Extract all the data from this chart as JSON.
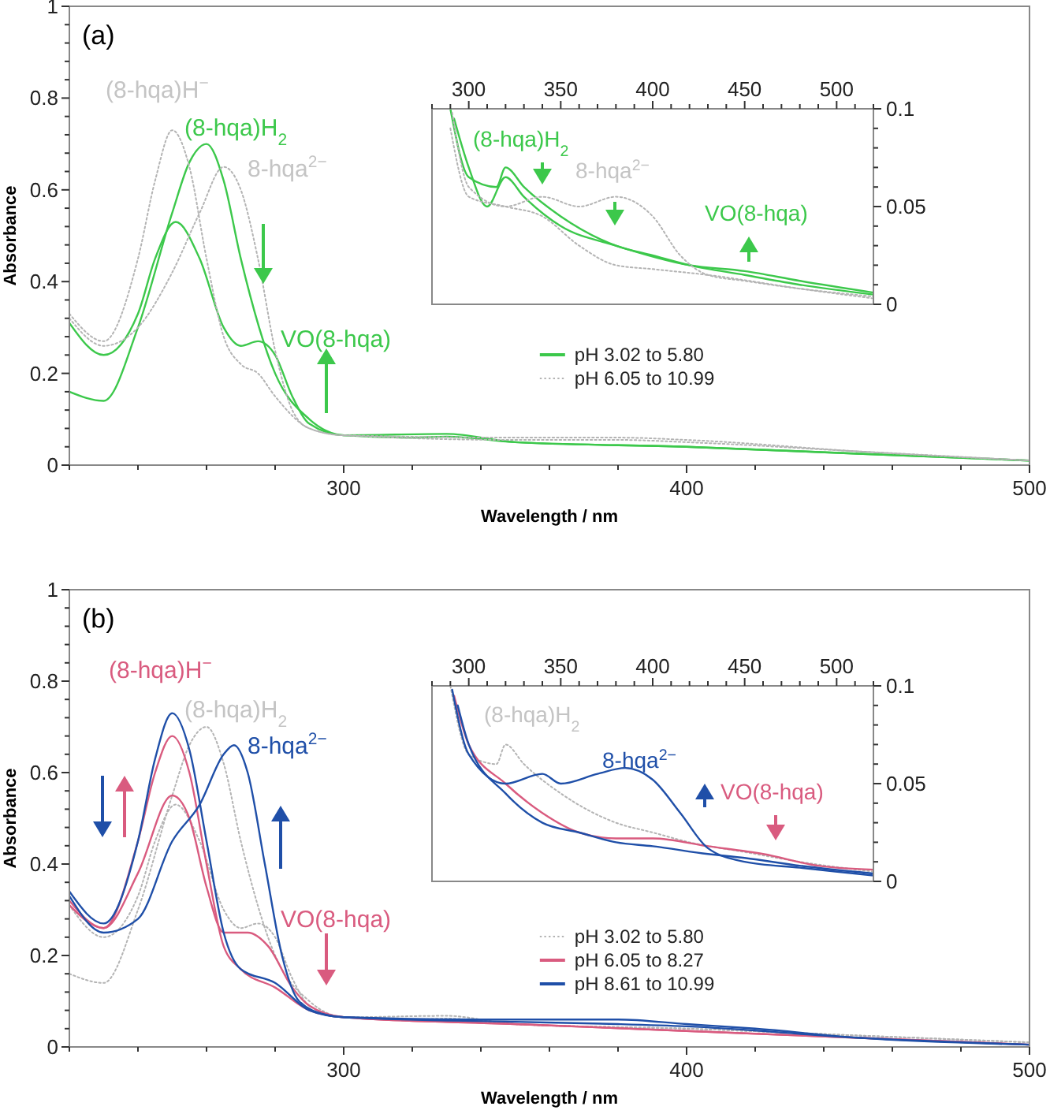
{
  "chart_data": [
    {
      "type": "line",
      "xlabel": "Wavelength / nm",
      "ylabel": "Absorbance",
      "xlim": [
        220,
        500
      ],
      "ylim": [
        0,
        1
      ],
      "xticks": [
        {
          "value": 220,
          "label": null
        },
        {
          "value": 240,
          "label": null
        },
        {
          "value": 260,
          "label": null
        },
        {
          "value": 280,
          "label": null
        },
        300,
        {
          "value": 320,
          "label": null
        },
        {
          "value": 340,
          "label": null
        },
        {
          "value": 360,
          "label": null
        },
        {
          "value": 380,
          "label": null
        },
        400,
        {
          "value": 420,
          "label": null
        },
        {
          "value": 440,
          "label": null
        },
        {
          "value": 460,
          "label": null
        },
        {
          "value": 480,
          "label": null
        },
        500
      ],
      "yticks": [
        0,
        {
          "value": 0.04,
          "label": null
        },
        {
          "value": 0.08,
          "label": null
        },
        {
          "value": 0.12,
          "label": null
        },
        {
          "value": 0.16,
          "label": null
        },
        0.2,
        {
          "value": 0.24,
          "label": null
        },
        {
          "value": 0.28,
          "label": null
        },
        {
          "value": 0.32,
          "label": null
        },
        {
          "value": 0.36,
          "label": null
        },
        0.4,
        {
          "value": 0.44,
          "label": null
        },
        {
          "value": 0.48,
          "label": null
        },
        {
          "value": 0.52,
          "label": null
        },
        {
          "value": 0.56,
          "label": null
        },
        0.6,
        {
          "value": 0.64,
          "label": null
        },
        {
          "value": 0.68,
          "label": null
        },
        {
          "value": 0.72,
          "label": null
        },
        {
          "value": 0.76,
          "label": null
        },
        0.8,
        {
          "value": 0.84,
          "label": null
        },
        {
          "value": 0.88,
          "label": null
        },
        {
          "value": 0.92,
          "label": null
        },
        {
          "value": 0.96,
          "label": null
        },
        1
      ],
      "legend": "bottom",
      "marker": "none",
      "series": [
        {
          "name": "pH 3.02 to 5.80",
          "color": "#3cc84b",
          "line_style": "solid",
          "x": [
            220,
            230,
            240,
            250,
            255,
            260,
            265,
            270,
            280,
            290,
            300,
            320,
            330,
            350,
            400,
            450,
            500
          ],
          "values": [
            0.16,
            0.14,
            0.3,
            0.55,
            0.66,
            0.7,
            0.62,
            0.45,
            0.2,
            0.1,
            0.065,
            0.06,
            0.062,
            0.05,
            0.04,
            0.025,
            0.01
          ]
        },
        {
          "color": "#3cc84b",
          "line_style": "solid",
          "x": [
            220,
            230,
            240,
            245,
            251,
            258,
            265,
            270,
            275,
            280,
            285,
            290,
            300,
            330,
            350,
            400,
            450,
            500
          ],
          "values": [
            0.31,
            0.24,
            0.33,
            0.45,
            0.53,
            0.45,
            0.3,
            0.26,
            0.27,
            0.24,
            0.15,
            0.09,
            0.065,
            0.068,
            0.05,
            0.04,
            0.025,
            0.01
          ]
        },
        {
          "name": "pH 6.05 to 10.99",
          "color": "#b4b4b4",
          "line_style": "dotted",
          "x": [
            220,
            230,
            240,
            245,
            250,
            255,
            260,
            265,
            270,
            275,
            280,
            290,
            300,
            350,
            380,
            400,
            450,
            500
          ],
          "values": [
            0.33,
            0.27,
            0.45,
            0.62,
            0.73,
            0.65,
            0.45,
            0.28,
            0.22,
            0.2,
            0.15,
            0.08,
            0.065,
            0.055,
            0.055,
            0.05,
            0.03,
            0.01
          ]
        },
        {
          "color": "#b4b4b4",
          "line_style": "dotted",
          "x": [
            220,
            230,
            240,
            250,
            258,
            265,
            270,
            275,
            280,
            285,
            290,
            300,
            350,
            380,
            400,
            450,
            500
          ],
          "values": [
            0.32,
            0.26,
            0.3,
            0.42,
            0.55,
            0.65,
            0.6,
            0.45,
            0.25,
            0.12,
            0.08,
            0.065,
            0.06,
            0.06,
            0.055,
            0.03,
            0.01
          ]
        }
      ],
      "annotations": [
        "(a)",
        "(8-hqa)H$^{−}$",
        "(8-hqa)H$_{2}$",
        "8-hqa$^{2−}$",
        "VO(8-hqa)"
      ]
    },
    {
      "type": "line",
      "xlim": [
        280,
        520
      ],
      "ylim": [
        0,
        0.1
      ],
      "xticks": [
        {
          "value": 280,
          "label": null
        },
        {
          "value": 290,
          "label": null
        },
        300,
        {
          "value": 310,
          "label": null
        },
        {
          "value": 320,
          "label": null
        },
        {
          "value": 330,
          "label": null
        },
        {
          "value": 340,
          "label": null
        },
        350,
        {
          "value": 360,
          "label": null
        },
        {
          "value": 370,
          "label": null
        },
        {
          "value": 380,
          "label": null
        },
        {
          "value": 390,
          "label": null
        },
        400,
        {
          "value": 410,
          "label": null
        },
        {
          "value": 420,
          "label": null
        },
        {
          "value": 430,
          "label": null
        },
        {
          "value": 440,
          "label": null
        },
        450,
        {
          "value": 460,
          "label": null
        },
        {
          "value": 470,
          "label": null
        },
        {
          "value": 480,
          "label": null
        },
        {
          "value": 490,
          "label": null
        },
        500,
        {
          "value": 510,
          "label": null
        },
        {
          "value": 520,
          "label": null
        }
      ],
      "yticks": [
        0,
        {
          "value": 0.01,
          "label": null
        },
        {
          "value": 0.02,
          "label": null
        },
        {
          "value": 0.03,
          "label": null
        },
        {
          "value": 0.04,
          "label": null
        },
        0.05,
        {
          "value": 0.06,
          "label": null
        },
        {
          "value": 0.07,
          "label": null
        },
        {
          "value": 0.08,
          "label": null
        },
        {
          "value": 0.09,
          "label": null
        },
        0.1
      ],
      "marker": "none",
      "series": [
        {
          "color": "#3cc84b",
          "line_style": "solid",
          "x": [
            290,
            300,
            315,
            320,
            330,
            350,
            380,
            400,
            420,
            450,
            480,
            520
          ],
          "values": [
            0.1,
            0.065,
            0.06,
            0.07,
            0.06,
            0.045,
            0.03,
            0.025,
            0.02,
            0.015,
            0.01,
            0.005
          ]
        },
        {
          "color": "#3cc84b",
          "line_style": "solid",
          "x": [
            292,
            300,
            310,
            320,
            330,
            350,
            380,
            420,
            450,
            480,
            520
          ],
          "values": [
            0.095,
            0.07,
            0.05,
            0.065,
            0.055,
            0.04,
            0.03,
            0.02,
            0.017,
            0.012,
            0.006
          ]
        },
        {
          "color": "#b4b4b4",
          "line_style": "dotted",
          "x": [
            291,
            300,
            320,
            340,
            360,
            380,
            400,
            415,
            430,
            450,
            480,
            520
          ],
          "values": [
            0.098,
            0.06,
            0.05,
            0.055,
            0.05,
            0.055,
            0.045,
            0.025,
            0.015,
            0.012,
            0.008,
            0.004
          ]
        },
        {
          "color": "#b4b4b4",
          "line_style": "dotted",
          "x": [
            290,
            300,
            320,
            340,
            360,
            380,
            400,
            430,
            480,
            520
          ],
          "values": [
            0.09,
            0.055,
            0.05,
            0.045,
            0.03,
            0.02,
            0.018,
            0.015,
            0.008,
            0.003
          ]
        }
      ],
      "annotations": [
        "(8-hqa)H$_{2}$",
        "8-hqa$^{2−}$",
        "VO(8-hqa)"
      ]
    },
    {
      "type": "line",
      "xlabel": "Wavelength / nm",
      "ylabel": "Absorbance",
      "xlim": [
        220,
        500
      ],
      "ylim": [
        0,
        1
      ],
      "xticks": [
        {
          "value": 220,
          "label": null
        },
        {
          "value": 240,
          "label": null
        },
        {
          "value": 260,
          "label": null
        },
        {
          "value": 280,
          "label": null
        },
        300,
        {
          "value": 320,
          "label": null
        },
        {
          "value": 340,
          "label": null
        },
        {
          "value": 360,
          "label": null
        },
        {
          "value": 380,
          "label": null
        },
        400,
        {
          "value": 420,
          "label": null
        },
        {
          "value": 440,
          "label": null
        },
        {
          "value": 460,
          "label": null
        },
        {
          "value": 480,
          "label": null
        },
        500
      ],
      "yticks": [
        0,
        {
          "value": 0.04,
          "label": null
        },
        {
          "value": 0.08,
          "label": null
        },
        {
          "value": 0.12,
          "label": null
        },
        {
          "value": 0.16,
          "label": null
        },
        0.2,
        {
          "value": 0.24,
          "label": null
        },
        {
          "value": 0.28,
          "label": null
        },
        {
          "value": 0.32,
          "label": null
        },
        {
          "value": 0.36,
          "label": null
        },
        0.4,
        {
          "value": 0.44,
          "label": null
        },
        {
          "value": 0.48,
          "label": null
        },
        {
          "value": 0.52,
          "label": null
        },
        {
          "value": 0.56,
          "label": null
        },
        0.6,
        {
          "value": 0.64,
          "label": null
        },
        {
          "value": 0.68,
          "label": null
        },
        {
          "value": 0.72,
          "label": null
        },
        {
          "value": 0.76,
          "label": null
        },
        0.8,
        {
          "value": 0.84,
          "label": null
        },
        {
          "value": 0.88,
          "label": null
        },
        {
          "value": 0.92,
          "label": null
        },
        {
          "value": 0.96,
          "label": null
        },
        1
      ],
      "legend": "bottom",
      "marker": "none",
      "series": [
        {
          "name": "pH 3.02 to 5.80",
          "color": "#b4b4b4",
          "line_style": "dotted",
          "x": [
            220,
            230,
            240,
            250,
            255,
            260,
            265,
            270,
            280,
            290,
            300,
            320,
            330,
            350,
            400,
            450,
            500
          ],
          "values": [
            0.16,
            0.14,
            0.3,
            0.55,
            0.66,
            0.7,
            0.62,
            0.45,
            0.2,
            0.1,
            0.065,
            0.06,
            0.062,
            0.05,
            0.04,
            0.025,
            0.01
          ]
        },
        {
          "color": "#b4b4b4",
          "line_style": "dotted",
          "x": [
            220,
            230,
            240,
            245,
            251,
            258,
            265,
            270,
            275,
            280,
            285,
            290,
            300,
            330,
            350,
            400,
            450,
            500
          ],
          "values": [
            0.31,
            0.24,
            0.33,
            0.45,
            0.53,
            0.45,
            0.3,
            0.26,
            0.27,
            0.24,
            0.15,
            0.09,
            0.065,
            0.068,
            0.05,
            0.04,
            0.025,
            0.01
          ]
        },
        {
          "name": "pH 6.05 to 8.27",
          "color": "#d95b7f",
          "line_style": "solid",
          "x": [
            220,
            230,
            240,
            250,
            255,
            260,
            265,
            272,
            278,
            285,
            290,
            300,
            350,
            400,
            500
          ],
          "values": [
            0.31,
            0.26,
            0.38,
            0.55,
            0.5,
            0.35,
            0.25,
            0.25,
            0.22,
            0.13,
            0.09,
            0.065,
            0.05,
            0.035,
            0.005
          ]
        },
        {
          "color": "#d95b7f",
          "line_style": "solid",
          "x": [
            220,
            230,
            240,
            245,
            250,
            255,
            260,
            265,
            270,
            280,
            290,
            300,
            350,
            400,
            500
          ],
          "values": [
            0.32,
            0.26,
            0.45,
            0.6,
            0.68,
            0.6,
            0.4,
            0.22,
            0.17,
            0.13,
            0.08,
            0.065,
            0.05,
            0.035,
            0.005
          ]
        },
        {
          "name": "pH 8.61 to 10.99",
          "color": "#1f4fa8",
          "line_style": "solid",
          "x": [
            220,
            230,
            240,
            245,
            250,
            255,
            260,
            265,
            270,
            280,
            290,
            300,
            350,
            380,
            400,
            450,
            500
          ],
          "values": [
            0.34,
            0.27,
            0.45,
            0.63,
            0.73,
            0.65,
            0.45,
            0.25,
            0.17,
            0.14,
            0.08,
            0.065,
            0.055,
            0.05,
            0.045,
            0.02,
            0.005
          ]
        },
        {
          "color": "#1f4fa8",
          "line_style": "solid",
          "x": [
            220,
            230,
            240,
            250,
            258,
            265,
            268,
            272,
            277,
            282,
            287,
            295,
            300,
            340,
            380,
            400,
            420,
            450,
            500
          ],
          "values": [
            0.33,
            0.25,
            0.28,
            0.45,
            0.53,
            0.64,
            0.66,
            0.6,
            0.4,
            0.2,
            0.1,
            0.07,
            0.065,
            0.06,
            0.06,
            0.05,
            0.04,
            0.02,
            0.005
          ]
        }
      ],
      "annotations": [
        "(b)",
        "(8-hqa)H$^{−}$",
        "(8-hqa)H$_{2}$",
        "8-hqa$^{2−}$",
        "VO(8-hqa)"
      ]
    },
    {
      "type": "line",
      "xlim": [
        280,
        520
      ],
      "ylim": [
        0,
        0.1
      ],
      "xticks": [
        {
          "value": 280,
          "label": null
        },
        {
          "value": 290,
          "label": null
        },
        300,
        {
          "value": 310,
          "label": null
        },
        {
          "value": 320,
          "label": null
        },
        {
          "value": 330,
          "label": null
        },
        {
          "value": 340,
          "label": null
        },
        350,
        {
          "value": 360,
          "label": null
        },
        {
          "value": 370,
          "label": null
        },
        {
          "value": 380,
          "label": null
        },
        {
          "value": 390,
          "label": null
        },
        400,
        {
          "value": 410,
          "label": null
        },
        {
          "value": 420,
          "label": null
        },
        {
          "value": 430,
          "label": null
        },
        {
          "value": 440,
          "label": null
        },
        450,
        {
          "value": 460,
          "label": null
        },
        {
          "value": 470,
          "label": null
        },
        {
          "value": 480,
          "label": null
        },
        {
          "value": 490,
          "label": null
        },
        500,
        {
          "value": 510,
          "label": null
        },
        {
          "value": 520,
          "label": null
        }
      ],
      "yticks": [
        0,
        {
          "value": 0.01,
          "label": null
        },
        {
          "value": 0.02,
          "label": null
        },
        {
          "value": 0.03,
          "label": null
        },
        {
          "value": 0.04,
          "label": null
        },
        0.05,
        {
          "value": 0.06,
          "label": null
        },
        {
          "value": 0.07,
          "label": null
        },
        {
          "value": 0.08,
          "label": null
        },
        {
          "value": 0.09,
          "label": null
        },
        0.1
      ],
      "marker": "none",
      "series": [
        {
          "color": "#b4b4b4",
          "line_style": "dotted",
          "x": [
            290,
            300,
            315,
            320,
            330,
            350,
            380,
            400,
            420,
            450,
            480,
            520
          ],
          "values": [
            0.1,
            0.065,
            0.06,
            0.07,
            0.06,
            0.045,
            0.03,
            0.025,
            0.02,
            0.015,
            0.01,
            0.005
          ]
        },
        {
          "color": "#d95b7f",
          "line_style": "solid",
          "x": [
            292,
            300,
            320,
            340,
            360,
            380,
            400,
            430,
            460,
            490,
            520
          ],
          "values": [
            0.095,
            0.07,
            0.05,
            0.035,
            0.025,
            0.022,
            0.022,
            0.018,
            0.014,
            0.008,
            0.006
          ]
        },
        {
          "color": "#1f4fa8",
          "line_style": "solid",
          "x": [
            294,
            300,
            320,
            340,
            360,
            380,
            400,
            430,
            450,
            480,
            520
          ],
          "values": [
            0.09,
            0.07,
            0.045,
            0.03,
            0.025,
            0.02,
            0.018,
            0.014,
            0.012,
            0.008,
            0.004
          ]
        },
        {
          "color": "#1f4fa8",
          "line_style": "solid",
          "x": [
            291,
            300,
            320,
            340,
            350,
            370,
            385,
            400,
            415,
            430,
            450,
            480,
            520
          ],
          "values": [
            0.098,
            0.065,
            0.05,
            0.055,
            0.05,
            0.055,
            0.058,
            0.052,
            0.035,
            0.017,
            0.01,
            0.007,
            0.003
          ]
        }
      ],
      "annotations": [
        "(8-hqa)H$_{2}$",
        "8-hqa$^{2−}$",
        "VO(8-hqa)"
      ]
    }
  ]
}
